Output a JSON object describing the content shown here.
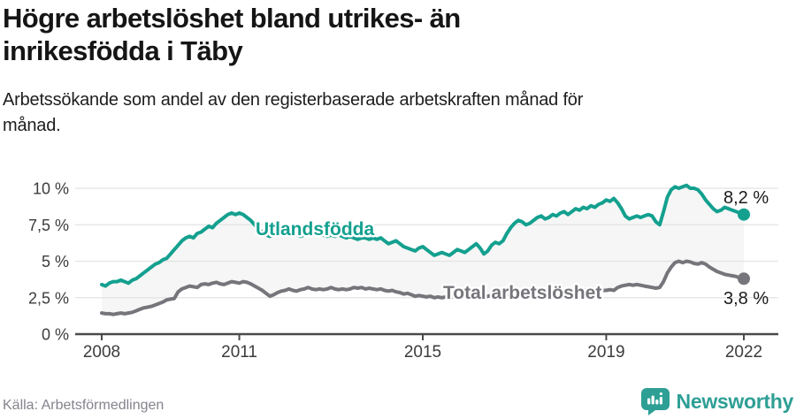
{
  "header": {
    "title_lines": [
      "Högre arbetslöshet bland utrikes- än",
      "inrikesfödda i Täby"
    ],
    "subtitle_lines": [
      "Arbetssökande som andel av den registerbaserade arbetskraften månad för",
      "månad."
    ]
  },
  "chart_data": {
    "type": "line",
    "title": "Högre arbetslöshet bland utrikes- än inrikesfödda i Täby",
    "subtitle": "Arbetssökande som andel av den registerbaserade arbetskraften månad för månad.",
    "x_start_year": 2008,
    "points_per_year": 12,
    "ylim": [
      0,
      10.5
    ],
    "grid": true,
    "band_fill": "#f6f6f6",
    "grid_color": "#e3e3e3",
    "axis_color": "#4a4a4a",
    "tick_label_color": "#3c3c3c",
    "end_label_color": "#1a1a1a",
    "y_ticks": [
      {
        "v": 0,
        "label": "0 %"
      },
      {
        "v": 2.5,
        "label": "2,5 %"
      },
      {
        "v": 5,
        "label": "5 %"
      },
      {
        "v": 7.5,
        "label": "7,5 %"
      },
      {
        "v": 10,
        "label": "10 %"
      }
    ],
    "x_ticks": [
      {
        "year": 2008,
        "label": "2008"
      },
      {
        "year": 2011,
        "label": "2011"
      },
      {
        "year": 2015,
        "label": "2015"
      },
      {
        "year": 2019,
        "label": "2019"
      },
      {
        "year": 2022,
        "label": "2022"
      }
    ],
    "series": [
      {
        "name": "Utlandsfödda",
        "color": "#14a08f",
        "end_label": "8,2 %",
        "end_value": 8.2,
        "values": [
          3.4,
          3.3,
          3.5,
          3.6,
          3.6,
          3.7,
          3.6,
          3.5,
          3.7,
          3.8,
          4.0,
          4.2,
          4.4,
          4.6,
          4.8,
          4.9,
          5.1,
          5.2,
          5.5,
          5.8,
          6.1,
          6.4,
          6.6,
          6.7,
          6.6,
          6.9,
          7.0,
          7.2,
          7.4,
          7.3,
          7.6,
          7.8,
          8.0,
          8.2,
          8.3,
          8.2,
          8.3,
          8.2,
          8.0,
          7.8,
          7.5,
          7.2,
          7.0,
          6.8,
          6.7,
          6.8,
          6.9,
          6.8,
          6.9,
          6.8,
          6.9,
          6.8,
          6.7,
          6.8,
          6.9,
          7.0,
          6.9,
          6.8,
          6.8,
          6.7,
          6.8,
          6.7,
          6.8,
          6.7,
          6.6,
          6.7,
          6.6,
          6.5,
          6.6,
          6.6,
          6.5,
          6.6,
          6.5,
          6.6,
          6.4,
          6.2,
          6.3,
          6.4,
          6.2,
          6.0,
          5.9,
          5.8,
          5.7,
          5.9,
          6.0,
          5.8,
          5.6,
          5.4,
          5.5,
          5.6,
          5.5,
          5.4,
          5.6,
          5.8,
          5.7,
          5.6,
          5.8,
          6.0,
          6.2,
          5.9,
          5.5,
          5.7,
          6.1,
          6.3,
          6.2,
          6.4,
          6.9,
          7.3,
          7.6,
          7.8,
          7.7,
          7.5,
          7.6,
          7.8,
          8.0,
          8.1,
          7.9,
          8.0,
          8.2,
          8.1,
          8.3,
          8.4,
          8.2,
          8.4,
          8.6,
          8.5,
          8.7,
          8.6,
          8.8,
          8.7,
          8.9,
          9.0,
          9.2,
          9.1,
          9.3,
          9.0,
          8.6,
          8.1,
          7.9,
          8.0,
          8.1,
          8.0,
          8.1,
          8.2,
          8.1,
          7.7,
          7.5,
          8.4,
          9.4,
          9.9,
          10.1,
          10.0,
          10.1,
          10.2,
          10.0,
          10.0,
          9.9,
          9.6,
          9.2,
          8.9,
          8.6,
          8.4,
          8.5,
          8.7,
          8.6,
          8.5,
          8.4,
          8.3,
          8.2
        ]
      },
      {
        "name": "Total arbetslöshet",
        "color": "#75757b",
        "end_label": "3,8 %",
        "end_value": 3.8,
        "values": [
          1.45,
          1.4,
          1.4,
          1.35,
          1.4,
          1.45,
          1.4,
          1.45,
          1.5,
          1.6,
          1.7,
          1.8,
          1.85,
          1.9,
          2.0,
          2.1,
          2.2,
          2.35,
          2.4,
          2.45,
          2.9,
          3.1,
          3.2,
          3.3,
          3.25,
          3.2,
          3.4,
          3.45,
          3.4,
          3.5,
          3.55,
          3.45,
          3.4,
          3.5,
          3.6,
          3.55,
          3.5,
          3.6,
          3.55,
          3.45,
          3.3,
          3.15,
          3.0,
          2.8,
          2.6,
          2.7,
          2.85,
          2.95,
          3.0,
          3.1,
          3.0,
          2.95,
          3.05,
          3.1,
          3.2,
          3.1,
          3.05,
          3.1,
          3.05,
          3.1,
          3.2,
          3.1,
          3.05,
          3.1,
          3.05,
          3.1,
          3.2,
          3.15,
          3.2,
          3.1,
          3.15,
          3.1,
          3.05,
          3.1,
          3.0,
          2.95,
          3.0,
          2.9,
          2.85,
          2.75,
          2.8,
          2.7,
          2.6,
          2.65,
          2.6,
          2.55,
          2.6,
          2.5,
          2.55,
          2.5,
          2.55,
          2.5,
          2.55,
          2.6,
          2.55,
          2.6,
          2.6,
          2.65,
          2.6,
          2.55,
          2.5,
          2.6,
          2.65,
          2.6,
          2.65,
          2.6,
          2.7,
          2.75,
          2.8,
          2.85,
          2.8,
          2.75,
          2.8,
          2.85,
          2.9,
          2.95,
          2.9,
          2.9,
          2.95,
          3.0,
          3.0,
          2.95,
          3.0,
          2.95,
          3.0,
          3.0,
          3.05,
          3.0,
          3.05,
          3.1,
          3.05,
          3.0,
          3.0,
          3.05,
          3.0,
          3.2,
          3.3,
          3.35,
          3.4,
          3.35,
          3.4,
          3.35,
          3.3,
          3.25,
          3.2,
          3.15,
          3.2,
          3.6,
          4.2,
          4.6,
          4.9,
          5.0,
          4.9,
          5.0,
          4.95,
          4.85,
          4.8,
          4.9,
          4.8,
          4.6,
          4.45,
          4.3,
          4.2,
          4.1,
          4.05,
          4.0,
          3.95,
          3.85,
          3.8
        ]
      }
    ]
  },
  "footer": {
    "source": "Källa: Arbetsförmedlingen",
    "brand": "Newsworthy",
    "brand_color": "#2e9f95"
  }
}
